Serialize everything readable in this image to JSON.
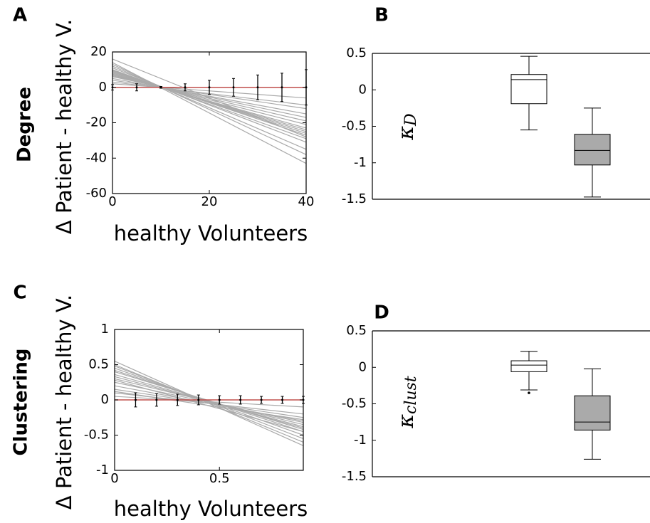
{
  "chart_data": [
    {
      "type": "line",
      "panel_label": "A",
      "row_label": "Degree",
      "xlabel": "healthy Volunteers",
      "ylabel": "Δ Patient - healthy V.",
      "xlim": [
        0,
        40
      ],
      "ylim": [
        -60,
        20
      ],
      "xticks": [
        0,
        20,
        40
      ],
      "yticks": [
        -60,
        -40,
        -20,
        0,
        20
      ],
      "x": [
        0,
        40
      ],
      "series": [
        {
          "color": "#aaaaaa",
          "values": [
            2,
            -6
          ]
        },
        {
          "color": "#aaaaaa",
          "values": [
            3,
            -10
          ]
        },
        {
          "color": "#aaaaaa",
          "values": [
            4,
            -12
          ]
        },
        {
          "color": "#aaaaaa",
          "values": [
            5,
            -15
          ]
        },
        {
          "color": "#aaaaaa",
          "values": [
            6,
            -17
          ]
        },
        {
          "color": "#aaaaaa",
          "values": [
            6.5,
            -19
          ]
        },
        {
          "color": "#aaaaaa",
          "values": [
            7,
            -21
          ]
        },
        {
          "color": "#aaaaaa",
          "values": [
            7.5,
            -23
          ]
        },
        {
          "color": "#aaaaaa",
          "values": [
            8,
            -24
          ]
        },
        {
          "color": "#aaaaaa",
          "values": [
            8.5,
            -25
          ]
        },
        {
          "color": "#aaaaaa",
          "values": [
            9,
            -26
          ]
        },
        {
          "color": "#aaaaaa",
          "values": [
            9.5,
            -27
          ]
        },
        {
          "color": "#aaaaaa",
          "values": [
            10,
            -29
          ]
        },
        {
          "color": "#aaaaaa",
          "values": [
            11,
            -31
          ]
        },
        {
          "color": "#aaaaaa",
          "values": [
            12,
            -35
          ]
        },
        {
          "color": "#aaaaaa",
          "values": [
            13,
            -38
          ]
        },
        {
          "color": "#aaaaaa",
          "values": [
            14,
            -43
          ]
        },
        {
          "color": "#aaaaaa",
          "values": [
            16,
            -28
          ]
        }
      ],
      "hline": 0,
      "hline_color": "#c0504d",
      "errorbars": {
        "x": [
          0,
          5,
          10,
          15,
          20,
          25,
          30,
          35,
          40
        ],
        "values": [
          0,
          0,
          0,
          0,
          0,
          0,
          0,
          0,
          0
        ],
        "errors": [
          1.5,
          2,
          0.5,
          2,
          4,
          5,
          7,
          8,
          10
        ]
      }
    },
    {
      "type": "box",
      "panel_label": "B",
      "ylabel": "κ",
      "ylabel_subscript": "D",
      "ylim": [
        -1.5,
        0.5
      ],
      "yticks": [
        -1.5,
        -1,
        -0.5,
        0,
        0.5
      ],
      "boxes": [
        {
          "low": -0.55,
          "q1": -0.19,
          "median": 0.14,
          "q3": 0.21,
          "high": 0.46,
          "fill": "#ffffff",
          "outliers": []
        },
        {
          "low": -1.47,
          "q1": -1.03,
          "median": -0.83,
          "q3": -0.61,
          "high": -0.25,
          "fill": "#aaaaaa",
          "outliers": []
        }
      ]
    },
    {
      "type": "line",
      "panel_label": "C",
      "row_label": "Clustering",
      "xlabel": "healthy Volunteers",
      "ylabel": "Δ Patient - healthy V.",
      "xlim": [
        0,
        0.9
      ],
      "ylim": [
        -1,
        1
      ],
      "xticks": [
        0,
        0.5
      ],
      "yticks": [
        -1,
        -0.5,
        0,
        0.5,
        1
      ],
      "x": [
        0,
        0.9
      ],
      "series": [
        {
          "color": "#aaaaaa",
          "values": [
            0.05,
            -0.1
          ]
        },
        {
          "color": "#aaaaaa",
          "values": [
            0.1,
            -0.2
          ]
        },
        {
          "color": "#aaaaaa",
          "values": [
            0.15,
            -0.25
          ]
        },
        {
          "color": "#aaaaaa",
          "values": [
            0.2,
            -0.3
          ]
        },
        {
          "color": "#aaaaaa",
          "values": [
            0.25,
            -0.32
          ]
        },
        {
          "color": "#aaaaaa",
          "values": [
            0.3,
            -0.35
          ]
        },
        {
          "color": "#aaaaaa",
          "values": [
            0.33,
            -0.38
          ]
        },
        {
          "color": "#aaaaaa",
          "values": [
            0.36,
            -0.4
          ]
        },
        {
          "color": "#aaaaaa",
          "values": [
            0.4,
            -0.42
          ]
        },
        {
          "color": "#aaaaaa",
          "values": [
            0.42,
            -0.45
          ]
        },
        {
          "color": "#aaaaaa",
          "values": [
            0.45,
            -0.5
          ]
        },
        {
          "color": "#aaaaaa",
          "values": [
            0.48,
            -0.55
          ]
        },
        {
          "color": "#aaaaaa",
          "values": [
            0.5,
            -0.6
          ]
        },
        {
          "color": "#aaaaaa",
          "values": [
            0.55,
            -0.65
          ]
        },
        {
          "color": "#aaaaaa",
          "values": [
            0.12,
            -0.28
          ]
        },
        {
          "color": "#aaaaaa",
          "values": [
            0.28,
            -0.45
          ]
        }
      ],
      "hline": 0,
      "hline_color": "#c0504d",
      "errorbars": {
        "x": [
          0.1,
          0.2,
          0.3,
          0.4,
          0.5,
          0.6,
          0.7,
          0.8,
          0.9
        ],
        "values": [
          0,
          0,
          0,
          0,
          0,
          0,
          0,
          0,
          0
        ],
        "errors": [
          0.1,
          0.09,
          0.08,
          0.07,
          0.06,
          0.06,
          0.05,
          0.05,
          0.05
        ]
      }
    },
    {
      "type": "box",
      "panel_label": "D",
      "ylabel": "κ",
      "ylabel_subscript": "clust",
      "ylim": [
        -1.5,
        0.5
      ],
      "yticks": [
        -1.5,
        -1,
        -0.5,
        0,
        0.5
      ],
      "boxes": [
        {
          "low": -0.31,
          "q1": -0.06,
          "median": 0.03,
          "q3": 0.09,
          "high": 0.22,
          "fill": "#ffffff",
          "outliers": [
            -0.35
          ]
        },
        {
          "low": -1.26,
          "q1": -0.86,
          "median": -0.75,
          "q3": -0.39,
          "high": -0.02,
          "fill": "#aaaaaa",
          "outliers": []
        }
      ]
    }
  ]
}
